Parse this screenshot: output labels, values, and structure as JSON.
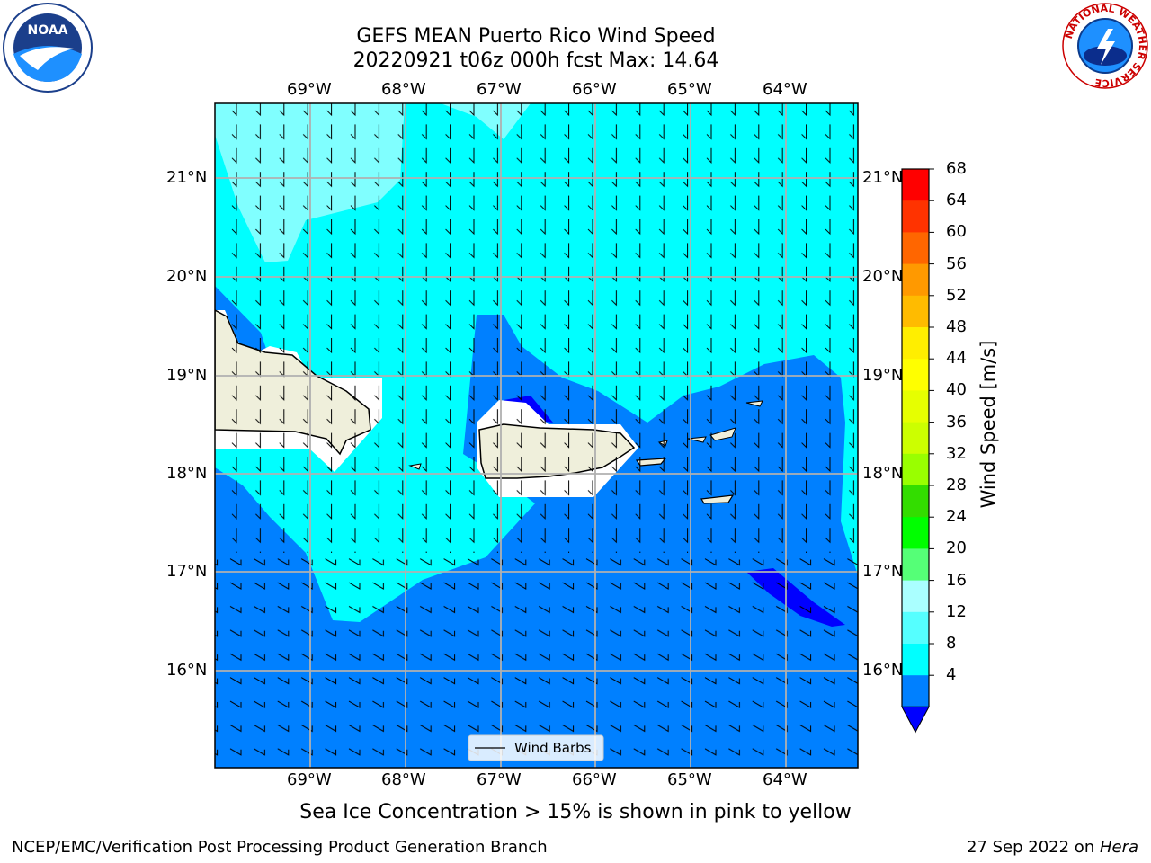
{
  "header": {
    "title_line1": "GEFS MEAN Puerto Rico Wind Speed",
    "title_line2": "20220921 t06z 000h fcst   Max: 14.64"
  },
  "logos": {
    "left_text": "NOAA",
    "right_ring_text": "NATIONAL WEATHER SERVICE"
  },
  "map": {
    "lon_labels": [
      "69°W",
      "68°W",
      "67°W",
      "66°W",
      "65°W",
      "64°W"
    ],
    "lat_labels": [
      "21°N",
      "20°N",
      "19°N",
      "18°N",
      "17°N",
      "16°N"
    ],
    "legend_label": "Wind Barbs",
    "colors": {
      "band_4_8": "#0080ff",
      "band_8_12": "#00ffff",
      "band_12_16": "#80ffff",
      "band_below_4": "#0000ff",
      "land": "#efefdb",
      "grid": "#b0b0b0"
    }
  },
  "colorbar": {
    "label": "Wind Speed [m/s]",
    "ticks": [
      "68",
      "64",
      "60",
      "56",
      "52",
      "48",
      "44",
      "40",
      "36",
      "32",
      "28",
      "24",
      "20",
      "16",
      "12",
      "8",
      "4"
    ],
    "colors": [
      "#ff0000",
      "#ff3300",
      "#ff6600",
      "#ff9900",
      "#ffbb00",
      "#ffee00",
      "#ffff00",
      "#e6ff00",
      "#ccff00",
      "#99ff00",
      "#33dd00",
      "#00ff00",
      "#55ff77",
      "#aaffff",
      "#55ffff",
      "#00ffff",
      "#0080ff"
    ],
    "extend_color": "#0000ff"
  },
  "note": "Sea Ice Concentration > 15% is shown in pink to yellow",
  "footer": {
    "left": "NCEP/EMC/Verification Post Processing Product Generation Branch",
    "right_prefix": "27 Sep 2022 on ",
    "right_host": "Hera"
  }
}
